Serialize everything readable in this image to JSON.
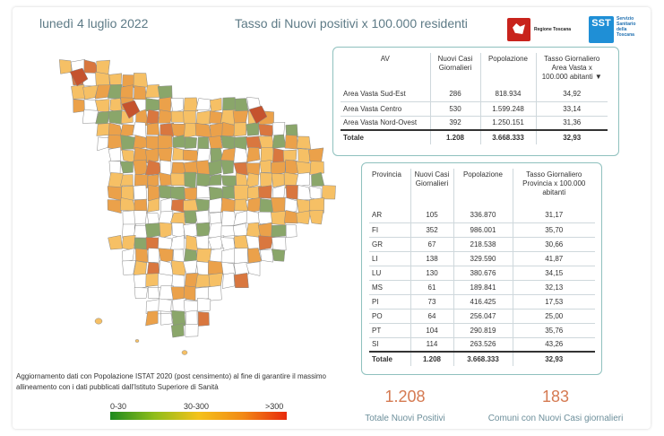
{
  "header": {
    "date": "lunedì 4 luglio 2022",
    "title": "Tasso di Nuovi positivi x 100.000 residenti"
  },
  "logos": {
    "regione_text": "Regione Toscana",
    "sst_badge": "SST",
    "sst_lines": [
      "Servizio",
      "Sanitario",
      "della",
      "Toscana"
    ]
  },
  "av_table": {
    "headers": [
      "AV",
      "Nuovi Casi Giornalieri",
      "Popolazione",
      "Tasso Giornaliero Area Vasta x 100.000 abitanti"
    ],
    "rows": [
      {
        "name": "Area Vasta Sud-Est",
        "cases": "286",
        "pop": "818.934",
        "rate": "34,92"
      },
      {
        "name": "Area Vasta Centro",
        "cases": "530",
        "pop": "1.599.248",
        "rate": "33,14"
      },
      {
        "name": "Area Vasta Nord-Ovest",
        "cases": "392",
        "pop": "1.250.151",
        "rate": "31,36"
      }
    ],
    "total": {
      "name": "Totale",
      "cases": "1.208",
      "pop": "3.668.333",
      "rate": "32,93"
    }
  },
  "prov_table": {
    "headers": [
      "Provincia",
      "Nuovi Casi Giornalieri",
      "Popolazione",
      "Tasso Giornaliero Provincia x 100.000 abitanti"
    ],
    "rows": [
      {
        "name": "AR",
        "cases": "105",
        "pop": "336.870",
        "rate": "31,17"
      },
      {
        "name": "FI",
        "cases": "352",
        "pop": "986.001",
        "rate": "35,70"
      },
      {
        "name": "GR",
        "cases": "67",
        "pop": "218.538",
        "rate": "30,66"
      },
      {
        "name": "LI",
        "cases": "138",
        "pop": "329.590",
        "rate": "41,87"
      },
      {
        "name": "LU",
        "cases": "130",
        "pop": "380.676",
        "rate": "34,15"
      },
      {
        "name": "MS",
        "cases": "61",
        "pop": "189.841",
        "rate": "32,13"
      },
      {
        "name": "PI",
        "cases": "73",
        "pop": "416.425",
        "rate": "17,53"
      },
      {
        "name": "PO",
        "cases": "64",
        "pop": "256.047",
        "rate": "25,00"
      },
      {
        "name": "PT",
        "cases": "104",
        "pop": "290.819",
        "rate": "35,76"
      },
      {
        "name": "SI",
        "cases": "114",
        "pop": "263.526",
        "rate": "43,26"
      }
    ],
    "total": {
      "name": "Totale",
      "cases": "1.208",
      "pop": "3.668.333",
      "rate": "32,93"
    }
  },
  "footnote": "Aggiornamento dati con Popolazione ISTAT 2020 (post censimento) al fine di garantire il massimo allineamento con i dati pubblicati dall'Istituto Superiore di Sanità",
  "legend": {
    "low": "0-30",
    "mid": "30-300",
    "high": ">300",
    "colors": [
      "#1e8a1e",
      "#8fbd1a",
      "#f4c21a",
      "#f28a16",
      "#e82a0c"
    ]
  },
  "kpis": {
    "total_value": "1.208",
    "total_label": "Totale Nuovi Positivi",
    "comuni_value": "183",
    "comuni_label": "Comuni con Nuovi Casi giornalieri"
  },
  "map_colors": {
    "none": "#ffffff",
    "green": "#8aa66a",
    "light": "#f6c065",
    "orange": "#eba14a",
    "dark": "#d9773f",
    "red": "#c5532e",
    "border": "#8a8a8a"
  }
}
